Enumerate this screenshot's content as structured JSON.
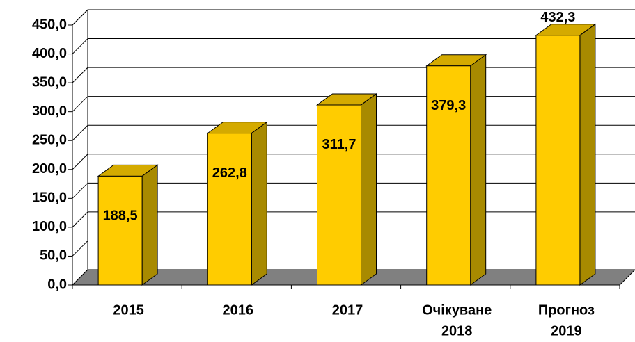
{
  "chart_data": {
    "type": "bar3d",
    "categories": [
      [
        "2015"
      ],
      [
        "2016"
      ],
      [
        "2017"
      ],
      [
        "Очікуване",
        "2018"
      ],
      [
        "Прогноз",
        "2019"
      ]
    ],
    "values": [
      188.5,
      262.8,
      311.7,
      379.3,
      432.3
    ],
    "value_labels": [
      "188,5",
      "262,8",
      "311,7",
      "379,3",
      "432,3"
    ],
    "color": "#ffcc00",
    "ylim": [
      0,
      450
    ],
    "yticks": [
      {
        "value": 0,
        "label": "0,0"
      },
      {
        "value": 50,
        "label": "50,0"
      },
      {
        "value": 100,
        "label": "100,0"
      },
      {
        "value": 150,
        "label": "150,0"
      },
      {
        "value": 200,
        "label": "200,0"
      },
      {
        "value": 250,
        "label": "250,0"
      },
      {
        "value": 300,
        "label": "300,0"
      },
      {
        "value": 350,
        "label": "350,0"
      },
      {
        "value": 400,
        "label": "400,0"
      },
      {
        "value": 450,
        "label": "450,0"
      }
    ],
    "grid": true
  }
}
